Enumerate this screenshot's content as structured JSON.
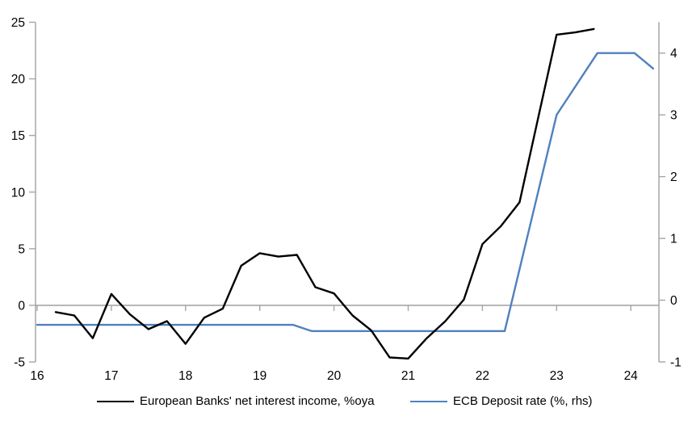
{
  "chart_data": {
    "type": "line",
    "title": "",
    "xlabel": "",
    "ylabel_left": "",
    "ylabel_right": "",
    "grid": "zero-line-only",
    "legend_position": "bottom",
    "axis_color": "#a6a6a6",
    "text_color": "#000000",
    "x_axis": {
      "ticks": [
        16,
        17,
        18,
        19,
        20,
        21,
        22,
        23,
        24
      ],
      "range": [
        16,
        24.4
      ]
    },
    "left_axis": {
      "ticks": [
        25,
        20,
        15,
        10,
        5,
        0,
        -5
      ],
      "range": [
        -5,
        25
      ]
    },
    "right_axis": {
      "ticks": [
        4,
        3,
        2,
        1,
        0,
        -1
      ],
      "range": [
        -1,
        4.5
      ]
    },
    "series": [
      {
        "name": "European Banks' net interest income, %oya",
        "axis": "left",
        "color": "#000000",
        "points": [
          [
            16.25,
            -0.6
          ],
          [
            16.5,
            -0.9
          ],
          [
            16.75,
            -2.9
          ],
          [
            17.0,
            1.0
          ],
          [
            17.25,
            -0.8
          ],
          [
            17.5,
            -2.1
          ],
          [
            17.75,
            -1.4
          ],
          [
            18.0,
            -3.4
          ],
          [
            18.25,
            -1.1
          ],
          [
            18.5,
            -0.3
          ],
          [
            18.75,
            3.5
          ],
          [
            19.0,
            4.6
          ],
          [
            19.25,
            4.3
          ],
          [
            19.5,
            4.45
          ],
          [
            19.75,
            1.6
          ],
          [
            20.0,
            1.05
          ],
          [
            20.25,
            -0.9
          ],
          [
            20.5,
            -2.2
          ],
          [
            20.75,
            -4.6
          ],
          [
            21.0,
            -4.7
          ],
          [
            21.25,
            -2.9
          ],
          [
            21.5,
            -1.4
          ],
          [
            21.75,
            0.5
          ],
          [
            22.0,
            5.4
          ],
          [
            22.25,
            7.0
          ],
          [
            22.5,
            9.1
          ],
          [
            22.75,
            16.5
          ],
          [
            23.0,
            23.9
          ],
          [
            23.25,
            24.1
          ],
          [
            23.5,
            24.4
          ]
        ]
      },
      {
        "name": "ECB Deposit rate (%, rhs)",
        "axis": "right",
        "color": "#4f81bd",
        "points": [
          [
            16.0,
            -0.4
          ],
          [
            19.45,
            -0.4
          ],
          [
            19.7,
            -0.5
          ],
          [
            22.3,
            -0.5
          ],
          [
            23.0,
            3.0
          ],
          [
            23.55,
            4.0
          ],
          [
            24.05,
            4.0
          ],
          [
            24.3,
            3.75
          ]
        ]
      }
    ]
  }
}
